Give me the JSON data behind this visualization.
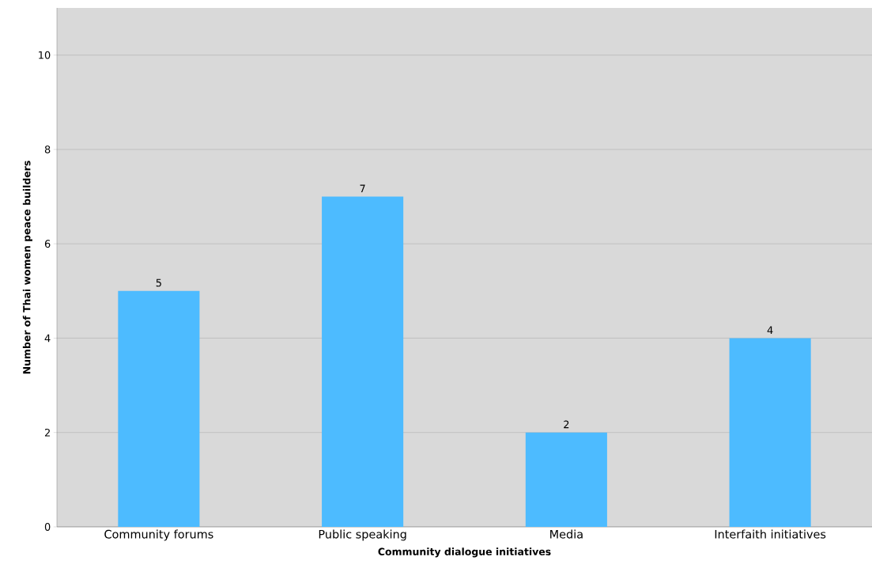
{
  "chart_data": {
    "type": "bar",
    "xlabel": "Community dialogue initiatives",
    "ylabel": "Number of Thai women peace builders",
    "categories": [
      "Community forums",
      "Public speaking",
      "Media",
      "Interfaith initiatives"
    ],
    "values": [
      5,
      7,
      2,
      4
    ],
    "color": "#4dbbff",
    "ylim": [
      0,
      11
    ],
    "yticks": [
      0,
      2,
      4,
      6,
      8,
      10
    ],
    "grid": "y",
    "data_labels": true
  }
}
